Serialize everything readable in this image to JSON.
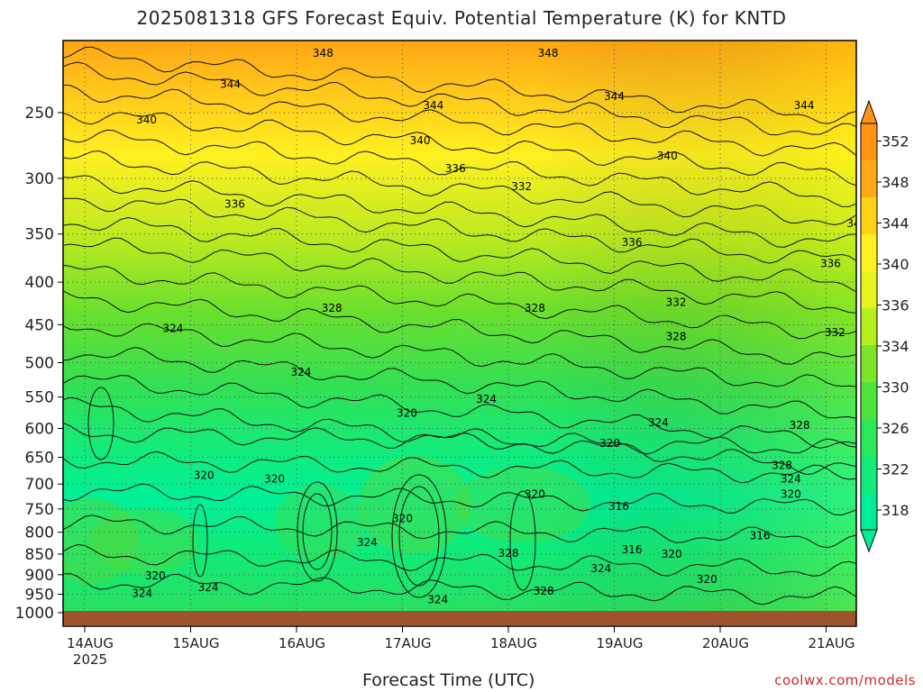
{
  "chart_data": {
    "type": "heatmap",
    "title": "2025081318 GFS Forecast Equiv. Potential Temperature (K) for KNTD",
    "xlabel": "Forecast Time (UTC)",
    "credit": "coolwx.com/models",
    "y_axis": {
      "scale": "log-pressure",
      "range_hpa": [
        1000,
        200
      ],
      "ticks": [
        "250",
        "300",
        "350",
        "400",
        "450",
        "500",
        "550",
        "600",
        "650",
        "700",
        "750",
        "800",
        "850",
        "900",
        "950",
        "1000"
      ]
    },
    "x_axis": {
      "range": [
        "2025-08-13 18Z",
        "2025-08-21 06Z"
      ],
      "ticks": [
        "14AUG",
        "15AUG",
        "16AUG",
        "17AUG",
        "18AUG",
        "19AUG",
        "20AUG",
        "21AUG"
      ],
      "sub_label": "2025"
    },
    "colorbar": {
      "levels": [
        "318",
        "322",
        "326",
        "330",
        "334",
        "336",
        "340",
        "344",
        "348",
        "352"
      ],
      "colors": [
        "#00ee9a",
        "#14ec78",
        "#2ae85c",
        "#4ee43c",
        "#7ee42a",
        "#b6ee1e",
        "#e6f61c",
        "#fff21c",
        "#ffd218",
        "#ffaa14",
        "#ff9414"
      ]
    },
    "contour_labels": [
      {
        "t": 54,
        "p": 212,
        "v": "348"
      },
      {
        "t": 105,
        "p": 212,
        "v": "348"
      },
      {
        "t": 33,
        "p": 231,
        "v": "344"
      },
      {
        "t": 79,
        "p": 245,
        "v": "344"
      },
      {
        "t": 120,
        "p": 239,
        "v": "344"
      },
      {
        "t": 163,
        "p": 245,
        "v": "344"
      },
      {
        "t": 14,
        "p": 255,
        "v": "340"
      },
      {
        "t": 76,
        "p": 270,
        "v": "340"
      },
      {
        "t": 132,
        "p": 282,
        "v": "340"
      },
      {
        "t": 175,
        "p": 340,
        "v": "340"
      },
      {
        "t": 34,
        "p": 322,
        "v": "336"
      },
      {
        "t": 84,
        "p": 292,
        "v": "336"
      },
      {
        "t": 124,
        "p": 358,
        "v": "336"
      },
      {
        "t": 169,
        "p": 380,
        "v": "336"
      },
      {
        "t": 99,
        "p": 307,
        "v": "332"
      },
      {
        "t": 134,
        "p": 423,
        "v": "332"
      },
      {
        "t": 170,
        "p": 460,
        "v": "332"
      },
      {
        "t": 56,
        "p": 430,
        "v": "328"
      },
      {
        "t": 102,
        "p": 430,
        "v": "328"
      },
      {
        "t": 134,
        "p": 465,
        "v": "328"
      },
      {
        "t": 162,
        "p": 595,
        "v": "328"
      },
      {
        "t": 158,
        "p": 665,
        "v": "328"
      },
      {
        "t": 96,
        "p": 848,
        "v": "328"
      },
      {
        "t": 104,
        "p": 942,
        "v": "328"
      },
      {
        "t": 20,
        "p": 455,
        "v": "324"
      },
      {
        "t": 49,
        "p": 513,
        "v": "324"
      },
      {
        "t": 91,
        "p": 553,
        "v": "324"
      },
      {
        "t": 130,
        "p": 590,
        "v": "324"
      },
      {
        "t": 160,
        "p": 690,
        "v": "324"
      },
      {
        "t": 64,
        "p": 823,
        "v": "324"
      },
      {
        "t": 117,
        "p": 885,
        "v": "324"
      },
      {
        "t": 80,
        "p": 964,
        "v": "324"
      },
      {
        "t": 13,
        "p": 948,
        "v": "324"
      },
      {
        "t": 28,
        "p": 932,
        "v": "324"
      },
      {
        "t": 73,
        "p": 575,
        "v": "320"
      },
      {
        "t": 119,
        "p": 625,
        "v": "320"
      },
      {
        "t": 27,
        "p": 683,
        "v": "320"
      },
      {
        "t": 43,
        "p": 690,
        "v": "320"
      },
      {
        "t": 72,
        "p": 770,
        "v": "320"
      },
      {
        "t": 102,
        "p": 720,
        "v": "320"
      },
      {
        "t": 160,
        "p": 720,
        "v": "320"
      },
      {
        "t": 133,
        "p": 850,
        "v": "320"
      },
      {
        "t": 141,
        "p": 912,
        "v": "320"
      },
      {
        "t": 16,
        "p": 903,
        "v": "320"
      },
      {
        "t": 121,
        "p": 745,
        "v": "316"
      },
      {
        "t": 124,
        "p": 840,
        "v": "316"
      },
      {
        "t": 153,
        "p": 808,
        "v": "316"
      }
    ]
  }
}
